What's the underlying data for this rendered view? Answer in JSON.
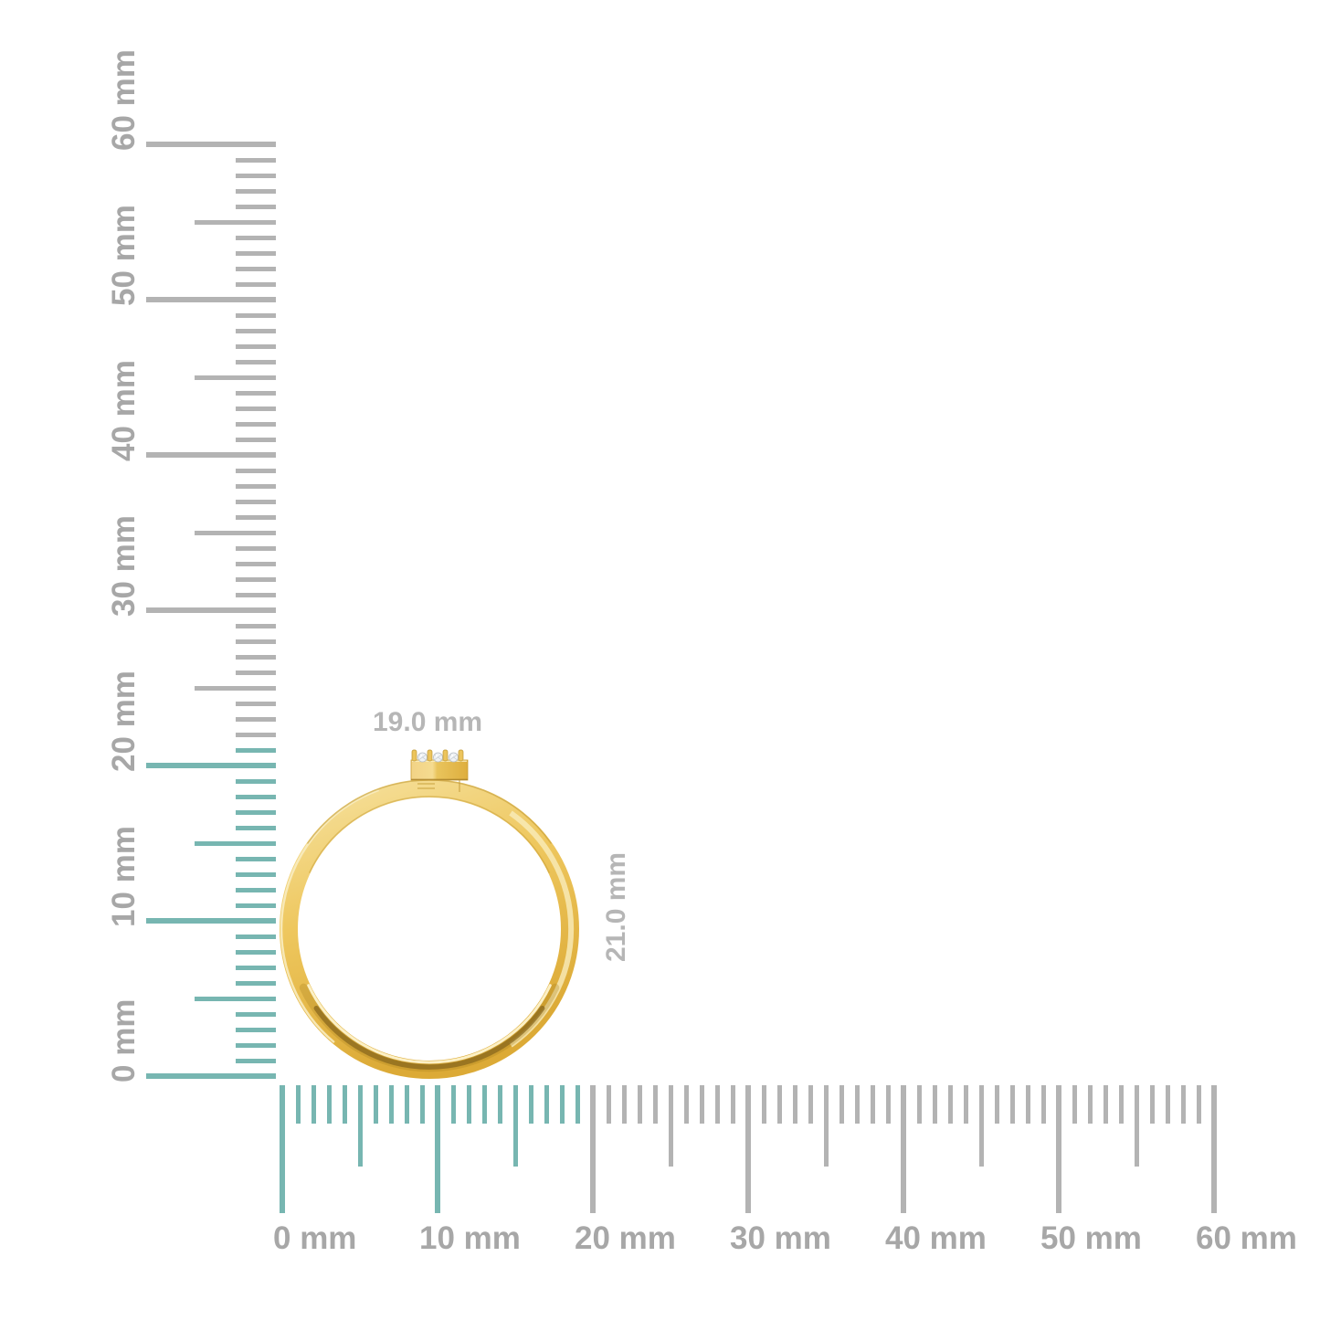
{
  "scene": {
    "background_color": "#ffffff",
    "description": "Gold band ring with a small rectangular three-stone diamond setting, measured against vertical and horizontal millimeter rulers"
  },
  "colors": {
    "tick_base_gray": "#b3b3b3",
    "tick_highlight_teal": "#77b6b1",
    "ruler_label_gray": "#a7a7a7",
    "dimension_label_gray": "#b6b6b6",
    "gold_light": "#f6e2a0",
    "gold_mid": "#eec75e",
    "gold_deep": "#dca835",
    "gold_shadow": "#8a681d",
    "diamond_white": "#eff2f4"
  },
  "rulers": {
    "unit": "mm",
    "vertical": {
      "min_mm": 0,
      "max_mm": 60,
      "minor_step_mm": 1,
      "half_step_mm": 5,
      "major_step_mm": 10,
      "major_labels": [
        "0 mm",
        "10 mm",
        "20 mm",
        "30 mm",
        "40 mm",
        "50 mm",
        "60 mm"
      ],
      "highlight_extent_mm": 21
    },
    "horizontal": {
      "min_mm": 0,
      "max_mm": 60,
      "minor_step_mm": 1,
      "half_step_mm": 5,
      "major_step_mm": 10,
      "major_labels": [
        "0 mm",
        "10 mm",
        "20 mm",
        "30 mm",
        "40 mm",
        "50 mm",
        "60 mm"
      ],
      "highlight_extent_mm": 19
    }
  },
  "ring": {
    "width_label": "19.0 mm",
    "height_label": "21.0 mm",
    "stone_count": 3
  }
}
